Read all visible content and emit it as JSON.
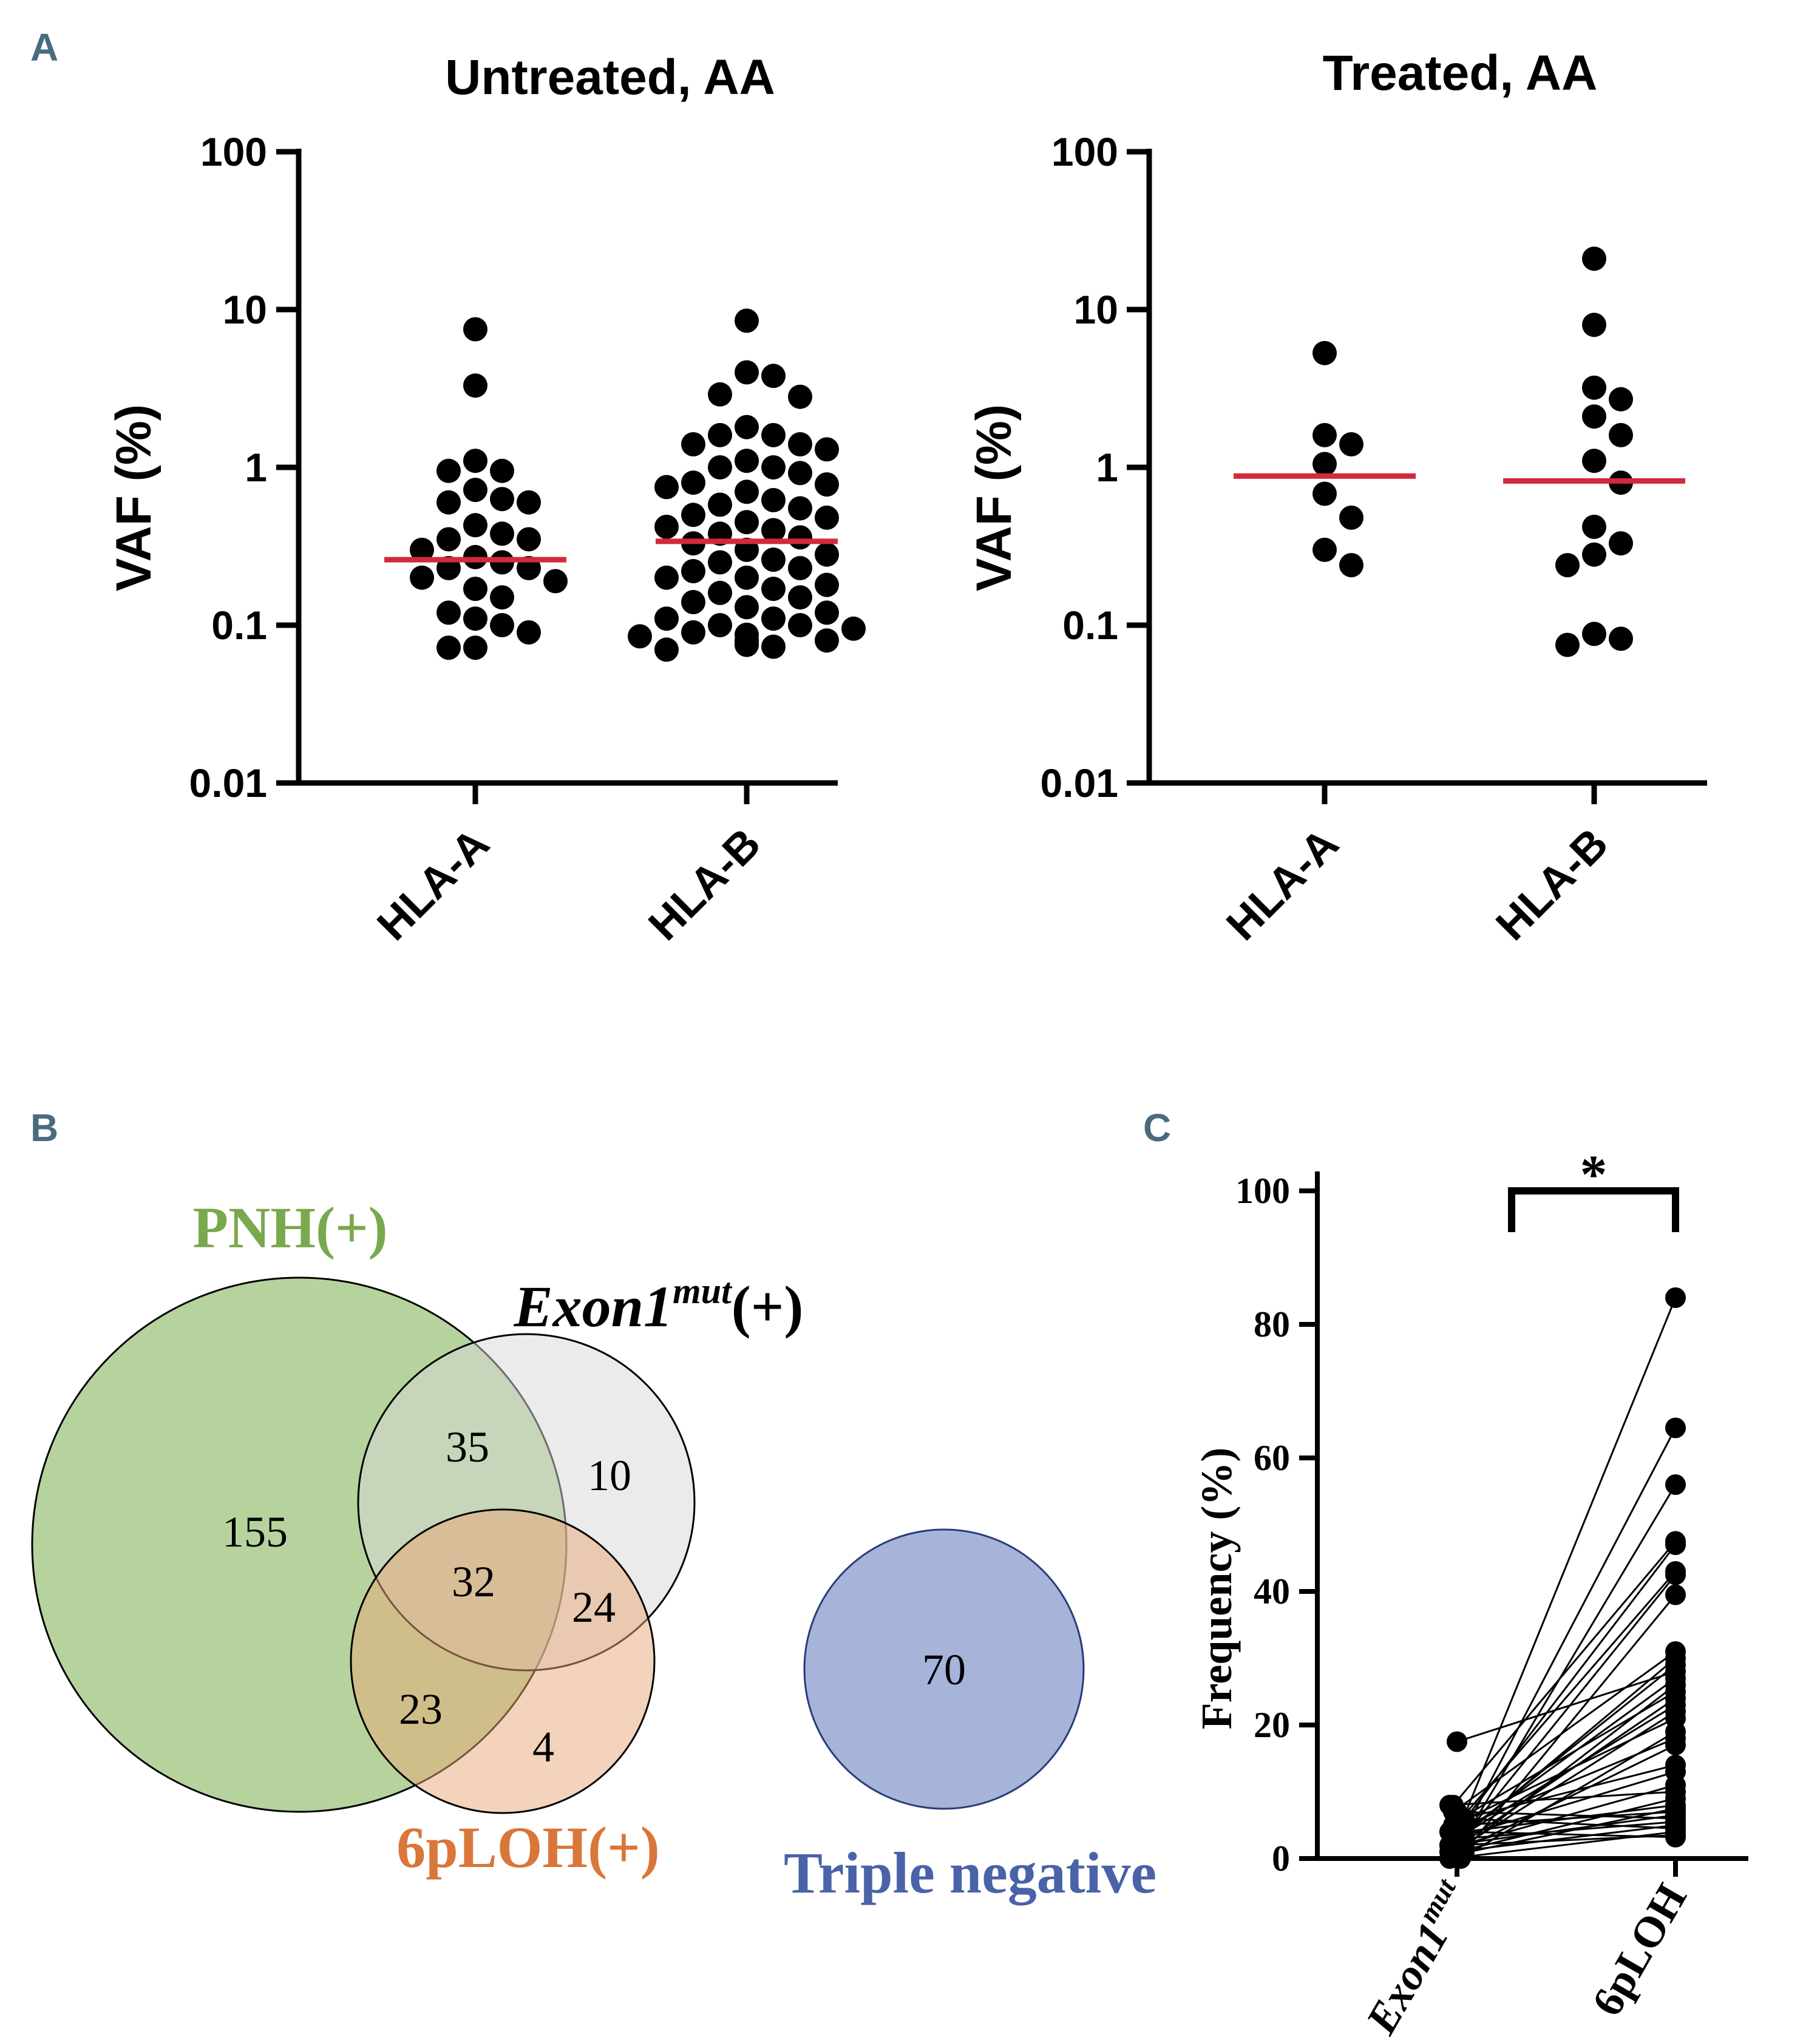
{
  "panels": {
    "A": {
      "label": "A",
      "ylabel": "VAF (%)",
      "yticks": [
        "100",
        "10",
        "1",
        "0.1",
        "0.01"
      ],
      "categories": [
        "HLA-A",
        "HLA-B"
      ]
    },
    "B": {
      "label": "B"
    },
    "C": {
      "label": "C"
    }
  },
  "colors": {
    "panel_label": "#4a6a7e",
    "median_line": "#d12b3b",
    "dots": "#000000",
    "pnh_fill": "#b7d39d",
    "exon_fill": "#d7d7d7",
    "lohp_fill": "#e7a877",
    "triple_fill": "#a6b4da",
    "pnh_text": "#7aa84d",
    "lohp_text": "#d9763a",
    "triple_text": "#4a62a8"
  },
  "chart_data": [
    {
      "id": "untreated",
      "type": "scatter",
      "title": "Untreated, AA",
      "ylabel": "VAF (%)",
      "yscale": "log",
      "ylim": [
        0.01,
        100
      ],
      "categories": [
        "HLA-A",
        "HLA-B"
      ],
      "series": [
        {
          "name": "HLA-A",
          "median": 0.26,
          "values": [
            7.5,
            3.3,
            1.1,
            0.95,
            0.95,
            0.72,
            0.63,
            0.6,
            0.6,
            0.43,
            0.38,
            0.35,
            0.35,
            0.3,
            0.27,
            0.25,
            0.23,
            0.23,
            0.2,
            0.19,
            0.17,
            0.15,
            0.12,
            0.11,
            0.1,
            0.09,
            0.072,
            0.072
          ]
        },
        {
          "name": "HLA-B",
          "median": 0.34,
          "values": [
            8.5,
            4.0,
            3.8,
            2.9,
            2.8,
            1.8,
            1.6,
            1.6,
            1.4,
            1.4,
            1.3,
            1.1,
            1.0,
            1.0,
            0.92,
            0.8,
            0.78,
            0.75,
            0.7,
            0.62,
            0.58,
            0.55,
            0.5,
            0.48,
            0.45,
            0.42,
            0.4,
            0.38,
            0.36,
            0.33,
            0.3,
            0.28,
            0.26,
            0.25,
            0.23,
            0.22,
            0.2,
            0.2,
            0.18,
            0.17,
            0.16,
            0.15,
            0.14,
            0.13,
            0.12,
            0.11,
            0.11,
            0.1,
            0.1,
            0.095,
            0.09,
            0.087,
            0.085,
            0.08,
            0.08,
            0.078,
            0.075,
            0.073,
            0.07
          ]
        }
      ]
    },
    {
      "id": "treated",
      "type": "scatter",
      "title": "Treated, AA",
      "ylabel": "VAF (%)",
      "yscale": "log",
      "ylim": [
        0.01,
        100
      ],
      "categories": [
        "HLA-A",
        "HLA-B"
      ],
      "series": [
        {
          "name": "HLA-A",
          "median": 0.88,
          "values": [
            5.3,
            1.6,
            1.4,
            1.05,
            0.68,
            0.48,
            0.3,
            0.24
          ]
        },
        {
          "name": "HLA-B",
          "median": 0.82,
          "values": [
            21,
            8.0,
            3.2,
            2.7,
            2.1,
            1.6,
            1.1,
            0.8,
            0.42,
            0.33,
            0.28,
            0.24,
            0.088,
            0.082,
            0.075
          ]
        }
      ]
    },
    {
      "id": "venn",
      "type": "venn",
      "sets": [
        {
          "name": "PNH(+)",
          "only": "155"
        },
        {
          "name_main": "Exon1",
          "name_sup": "mut",
          "name_suffix": "(+)",
          "only": "10"
        },
        {
          "name": "6pLOH(+)",
          "only": "4"
        },
        {
          "name": "Triple negative",
          "only": "70"
        }
      ],
      "intersections": [
        {
          "sets": [
            "PNH(+)",
            "Exon1mut(+)"
          ],
          "value": "35"
        },
        {
          "sets": [
            "PNH(+)",
            "Exon1mut(+)",
            "6pLOH(+)"
          ],
          "value": "32"
        },
        {
          "sets": [
            "Exon1mut(+)",
            "6pLOH(+)"
          ],
          "value": "24"
        },
        {
          "sets": [
            "PNH(+)",
            "6pLOH(+)"
          ],
          "value": "23"
        }
      ]
    },
    {
      "id": "paired",
      "type": "line",
      "ylabel": "Frequency (%)",
      "ylim": [
        0,
        100
      ],
      "yticks": [
        "0",
        "20",
        "40",
        "60",
        "80",
        "100"
      ],
      "categories": [
        {
          "main": "Exon1",
          "sup": "mut"
        },
        {
          "main": "6pLOH",
          "sup": ""
        }
      ],
      "significance": "*",
      "pairs": [
        [
          1,
          84
        ],
        [
          2,
          64.5
        ],
        [
          3,
          56
        ],
        [
          8,
          47.5
        ],
        [
          5,
          47
        ],
        [
          4,
          43
        ],
        [
          2,
          42.5
        ],
        [
          1,
          39.5
        ],
        [
          7,
          31
        ],
        [
          3,
          30
        ],
        [
          2,
          29
        ],
        [
          17.5,
          28
        ],
        [
          4,
          27
        ],
        [
          0.5,
          26
        ],
        [
          6,
          25
        ],
        [
          1,
          24
        ],
        [
          3,
          23
        ],
        [
          2,
          22
        ],
        [
          5,
          21
        ],
        [
          0,
          19
        ],
        [
          4,
          18
        ],
        [
          1,
          17
        ],
        [
          6,
          14
        ],
        [
          3,
          13
        ],
        [
          2,
          11
        ],
        [
          8,
          10
        ],
        [
          1,
          9
        ],
        [
          4,
          8
        ],
        [
          0.5,
          7.5
        ],
        [
          5,
          7
        ],
        [
          2,
          6.5
        ],
        [
          7,
          6
        ],
        [
          3,
          5.5
        ],
        [
          1,
          5
        ],
        [
          6,
          4.5
        ],
        [
          0,
          4
        ],
        [
          2,
          3.5
        ],
        [
          4,
          3.2
        ]
      ]
    }
  ]
}
